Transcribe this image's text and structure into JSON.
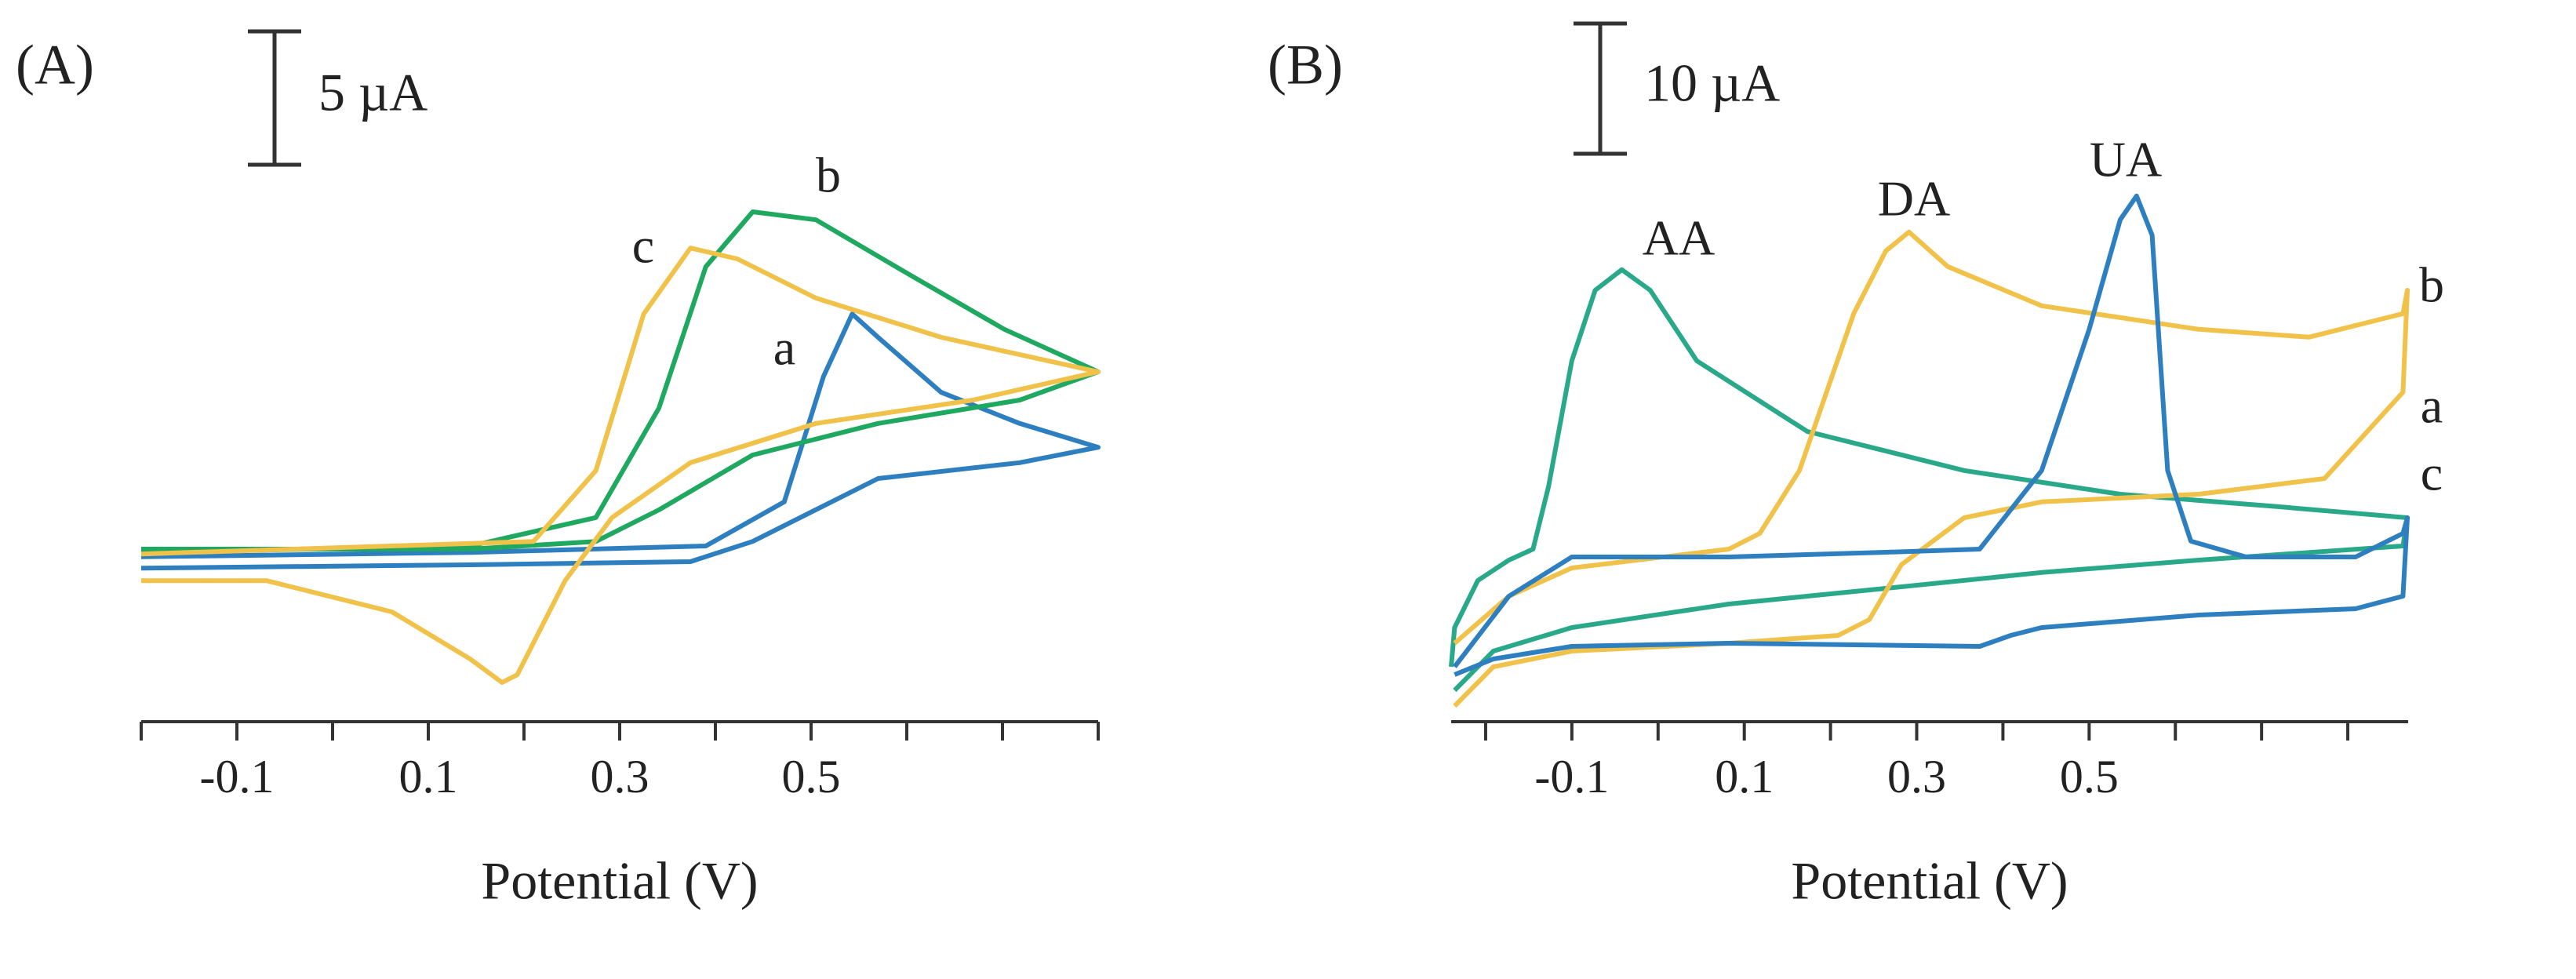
{
  "chart_data": [
    {
      "type": "line",
      "panel": "(A)",
      "xlabel": "Potential (V)",
      "xlim": [
        -0.2,
        0.8
      ],
      "xticks": [
        -0.1,
        0.1,
        0.3,
        0.5
      ],
      "xminorticks": [
        -0.2,
        0,
        0.2,
        0.4,
        0.6,
        0.7,
        0.8
      ],
      "ylim": [
        0,
        26
      ],
      "scale_bar": {
        "value": 5,
        "label": "5 µA"
      },
      "series": [
        {
          "name": "a",
          "color": "#2e7fc0",
          "x": [
            -0.2,
            0.144,
            0.39,
            0.472,
            0.513,
            0.543,
            0.57,
            0.636,
            0.718,
            0.8,
            0.718,
            0.57,
            0.439,
            0.374,
            0.144,
            -0.2
          ],
          "values": [
            6.18,
            6.35,
            6.59,
            8.24,
            12.94,
            15.29,
            14.41,
            12.35,
            11.18,
            10.29,
            9.71,
            9.12,
            6.76,
            6.0,
            5.88,
            5.76
          ]
        },
        {
          "name": "b",
          "color": "#1fa860",
          "x": [
            -0.2,
            0.144,
            0.275,
            0.341,
            0.39,
            0.439,
            0.505,
            0.603,
            0.702,
            0.8,
            0.718,
            0.57,
            0.439,
            0.341,
            0.275,
            0.144,
            -0.2
          ],
          "values": [
            6.35,
            6.59,
            7.65,
            11.76,
            17.06,
            19.12,
            18.82,
            16.76,
            14.71,
            13.12,
            12.06,
            11.18,
            10.0,
            7.94,
            6.76,
            6.47,
            6.47
          ]
        },
        {
          "name": "c",
          "color": "#f0c24a",
          "x": [
            -0.2,
            0.21,
            0.275,
            0.325,
            0.374,
            0.423,
            0.505,
            0.636,
            0.8,
            0.669,
            0.505,
            0.374,
            0.292,
            0.243,
            0.193,
            0.177,
            0.144,
            0.062,
            -0.069,
            -0.2
          ],
          "values": [
            6.29,
            6.76,
            9.41,
            15.29,
            17.76,
            17.35,
            15.88,
            14.41,
            13.12,
            12.06,
            11.18,
            9.71,
            7.65,
            5.29,
            1.76,
            1.47,
            2.35,
            4.12,
            5.29,
            5.29
          ]
        }
      ]
    },
    {
      "type": "line",
      "panel": "(B)",
      "xlabel": "Potential (V)",
      "xlim": [
        -0.24,
        0.87
      ],
      "xticks": [
        -0.1,
        0.1,
        0.3,
        0.5
      ],
      "xminorticks": [
        -0.2,
        0,
        0.2,
        0.4,
        0.6,
        0.7,
        0.8
      ],
      "ylim": [
        0,
        53
      ],
      "scale_bar": {
        "value": 10,
        "label": "10 µA"
      },
      "annotations": [
        "AA",
        "DA",
        "UA"
      ],
      "series": [
        {
          "name": "a",
          "color": "#2aa88a",
          "x": [
            -0.236,
            -0.191,
            -0.1,
            0.082,
            0.264,
            0.445,
            0.627,
            0.864,
            0.869,
            0.718,
            0.536,
            0.355,
            0.173,
            0.045,
            -0.009,
            -0.042,
            -0.073,
            -0.1,
            -0.127,
            -0.145,
            -0.173,
            -0.209,
            -0.236,
            -0.24
          ],
          "values": [
            2.41,
            5.42,
            7.23,
            9.04,
            10.24,
            11.45,
            12.41,
            13.49,
            15.66,
            16.51,
            17.47,
            19.28,
            22.29,
            27.71,
            33.13,
            34.7,
            33.13,
            27.71,
            18.07,
            13.25,
            12.41,
            10.84,
            7.23,
            4.22
          ]
        },
        {
          "name": "b",
          "color": "#f0c24a",
          "x": [
            -0.236,
            -0.173,
            -0.1,
            0.082,
            0.118,
            0.164,
            0.227,
            0.264,
            0.291,
            0.336,
            0.445,
            0.627,
            0.755,
            0.864,
            0.869,
            0.864,
            0.773,
            0.627,
            0.445,
            0.355,
            0.282,
            0.245,
            0.209,
            0.082,
            -0.1,
            -0.191,
            -0.236
          ],
          "values": [
            6.02,
            9.64,
            11.81,
            13.25,
            14.46,
            19.28,
            31.33,
            36.14,
            37.59,
            34.94,
            31.93,
            30.12,
            29.52,
            31.33,
            33.13,
            25.3,
            18.67,
            17.47,
            16.87,
            15.66,
            12.05,
            7.83,
            6.63,
            6.02,
            5.42,
            4.22,
            1.2
          ]
        },
        {
          "name": "c",
          "color": "#2e7fc0",
          "x": [
            -0.236,
            -0.173,
            -0.1,
            0.082,
            0.264,
            0.373,
            0.445,
            0.5,
            0.536,
            0.555,
            0.573,
            0.591,
            0.618,
            0.682,
            0.809,
            0.864,
            0.869,
            0.864,
            0.809,
            0.627,
            0.445,
            0.409,
            0.373,
            0.082,
            -0.1,
            -0.191,
            -0.236
          ],
          "values": [
            4.22,
            9.64,
            12.65,
            12.65,
            13.01,
            13.25,
            19.28,
            30.12,
            38.55,
            40.36,
            37.35,
            19.28,
            13.86,
            12.65,
            12.65,
            14.46,
            15.66,
            9.64,
            8.67,
            8.19,
            7.23,
            6.63,
            5.78,
            6.02,
            5.78,
            4.82,
            3.61
          ]
        }
      ]
    }
  ]
}
